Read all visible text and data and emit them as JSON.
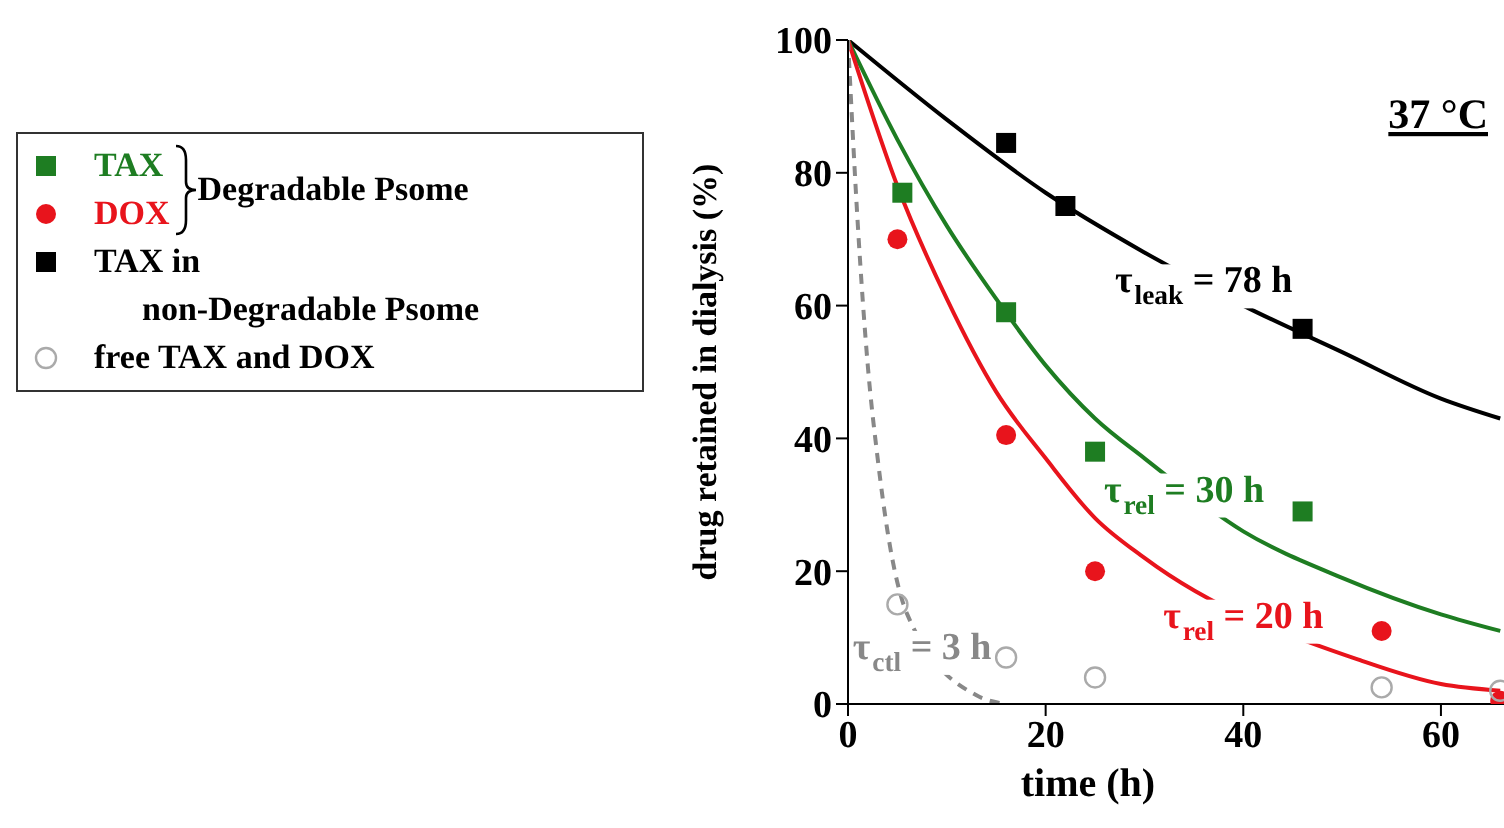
{
  "chart_data": {
    "type": "scatter",
    "title": "37 °C",
    "xlabel": "time (h)",
    "ylabel": "drug retained in dialysis (%)",
    "legend_title": "Degradable Psome",
    "xlim": [
      0,
      68
    ],
    "xticks": [
      0,
      20,
      40,
      60
    ],
    "ylim": [
      0,
      100
    ],
    "yticks": [
      0,
      20,
      40,
      60,
      80,
      100
    ],
    "legend": "left",
    "grid": false,
    "series": [
      {
        "type": "line",
        "color": "#000000",
        "line_style": "solid",
        "marker": "none",
        "x": [
          0,
          10,
          20,
          30,
          40,
          50,
          60,
          66
        ],
        "values": [
          100,
          88,
          77,
          68,
          60,
          53,
          46,
          43
        ]
      },
      {
        "type": "line",
        "color": "#1e7d22",
        "line_style": "solid",
        "marker": "none",
        "x": [
          0,
          5,
          10,
          15,
          20,
          25,
          30,
          40,
          50,
          60,
          66
        ],
        "values": [
          100,
          85,
          72,
          61,
          51,
          43,
          37,
          26,
          19,
          13.5,
          11
        ]
      },
      {
        "type": "line",
        "color": "#e8141c",
        "line_style": "solid",
        "marker": "none",
        "x": [
          0,
          5,
          10,
          15,
          20,
          25,
          30,
          52,
          60,
          66
        ],
        "values": [
          100,
          78,
          61,
          47,
          37,
          28,
          22,
          6.5,
          3,
          2
        ]
      },
      {
        "type": "line",
        "color": "#888888",
        "line_style": "dashed",
        "marker": "none",
        "x": [
          0,
          1,
          2,
          3,
          4,
          6,
          13,
          16
        ],
        "values": [
          100,
          72,
          51,
          37,
          26,
          13.5,
          1.3,
          0
        ]
      },
      {
        "name": "TAX",
        "color": "#1e7d22",
        "marker": "square",
        "x": [
          5.5,
          16,
          25,
          46
        ],
        "values": [
          77,
          59,
          38,
          29
        ]
      },
      {
        "name": "DOX",
        "color": "#e8141c",
        "marker": "circle",
        "x": [
          5,
          16,
          25,
          54,
          66
        ],
        "values": [
          70,
          40.5,
          20,
          11,
          0.5
        ]
      },
      {
        "name": "TAX in non-Degradable Psome",
        "color": "#000000",
        "marker": "square",
        "x": [
          16,
          22,
          46
        ],
        "values": [
          84.5,
          75,
          56.5
        ]
      },
      {
        "name": "free TAX and DOX",
        "color": "#aaaaaa",
        "marker": "circle",
        "x": [
          5,
          16,
          25,
          54,
          66
        ],
        "values": [
          15,
          7,
          4,
          2.5,
          2
        ]
      }
    ],
    "annotations": [
      {
        "text": "τ$_{leak}$ = 78 h",
        "x": 36,
        "y": 63.5
      },
      {
        "text": "τ$_{rel}$ = 30 h",
        "x": 34,
        "y": 32
      },
      {
        "text": "τ$_{rel}$ = 20 h",
        "x": 40,
        "y": 13
      },
      {
        "text": "τ$_{ctl}$ = 3 h",
        "x": 7.5,
        "y": 8.3
      }
    ]
  }
}
